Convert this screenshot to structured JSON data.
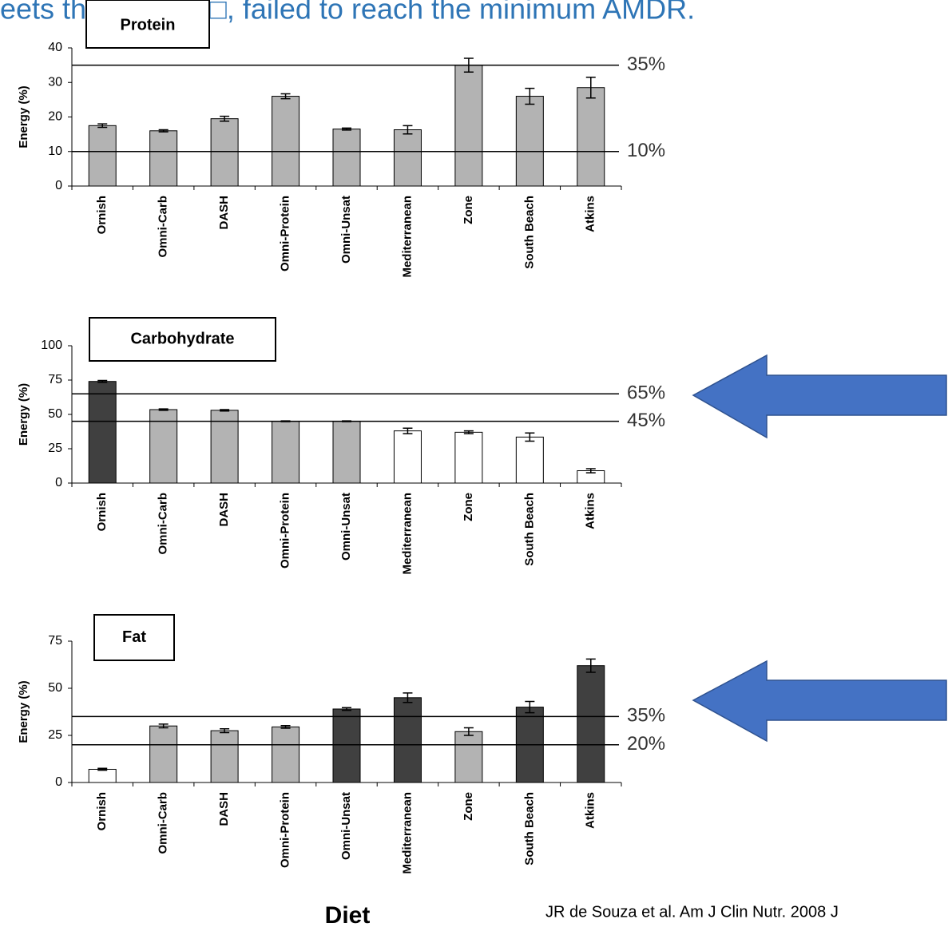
{
  "caption": "eets the AMDR, □, failed to reach the minimum AMDR.",
  "source": "JR de Souza et al. Am J Clin Nutr. 2008 J",
  "chart_data": [
    {
      "type": "bar",
      "title": "Protein",
      "ylabel": "Energy (%)",
      "categories": [
        "Ornish",
        "Omni-Carb",
        "DASH",
        "Omni-Protein",
        "Omni-Unsat",
        "Mediterranean",
        "Zone",
        "South Beach",
        "Atkins"
      ],
      "values": [
        17.5,
        16,
        19.5,
        26,
        16.5,
        16.3,
        35,
        26,
        28.5
      ],
      "errors": [
        0.5,
        0.3,
        0.7,
        0.7,
        0.3,
        1.2,
        2,
        2.3,
        3
      ],
      "colors": [
        "#b3b3b3",
        "#b3b3b3",
        "#b3b3b3",
        "#b3b3b3",
        "#b3b3b3",
        "#b3b3b3",
        "#b3b3b3",
        "#b3b3b3",
        "#b3b3b3"
      ],
      "ylim": [
        0,
        40
      ],
      "yticks": [
        0,
        10,
        20,
        30,
        40
      ],
      "reference_lines": [
        {
          "value": 35,
          "label": "35%"
        },
        {
          "value": 10,
          "label": "10%"
        }
      ]
    },
    {
      "type": "bar",
      "title": "Carbohydrate",
      "ylabel": "Energy (%)",
      "categories": [
        "Ornish",
        "Omni-Carb",
        "DASH",
        "Omni-Protein",
        "Omni-Unsat",
        "Mediterranean",
        "Zone",
        "South Beach",
        "Atkins"
      ],
      "values": [
        74,
        53.5,
        53,
        45,
        45,
        38,
        37,
        33.5,
        9
      ],
      "errors": [
        0.7,
        0.5,
        0.5,
        0.3,
        0.3,
        2,
        1,
        3,
        1.5
      ],
      "colors": [
        "#404040",
        "#b3b3b3",
        "#b3b3b3",
        "#b3b3b3",
        "#b3b3b3",
        "#ffffff",
        "#ffffff",
        "#ffffff",
        "#ffffff"
      ],
      "ylim": [
        0,
        100
      ],
      "yticks": [
        0,
        25,
        50,
        75,
        100
      ],
      "reference_lines": [
        {
          "value": 65,
          "label": "65%"
        },
        {
          "value": 45,
          "label": "45%"
        }
      ]
    },
    {
      "type": "bar",
      "title": "Fat",
      "ylabel": "Energy (%)",
      "xlabel": "Diet",
      "categories": [
        "Ornish",
        "Omni-Carb",
        "DASH",
        "Omni-Protein",
        "Omni-Unsat",
        "Mediterranean",
        "Zone",
        "South Beach",
        "Atkins"
      ],
      "values": [
        7,
        30,
        27.5,
        29.5,
        39,
        45,
        27,
        40,
        62
      ],
      "errors": [
        0.5,
        1,
        1,
        0.7,
        0.7,
        2.5,
        2,
        3,
        3.5
      ],
      "colors": [
        "#ffffff",
        "#b3b3b3",
        "#b3b3b3",
        "#b3b3b3",
        "#404040",
        "#404040",
        "#b3b3b3",
        "#404040",
        "#404040"
      ],
      "ylim": [
        0,
        75
      ],
      "yticks": [
        0,
        25,
        50,
        75
      ],
      "reference_lines": [
        {
          "value": 35,
          "label": "35%"
        },
        {
          "value": 20,
          "label": "20%"
        }
      ]
    }
  ]
}
